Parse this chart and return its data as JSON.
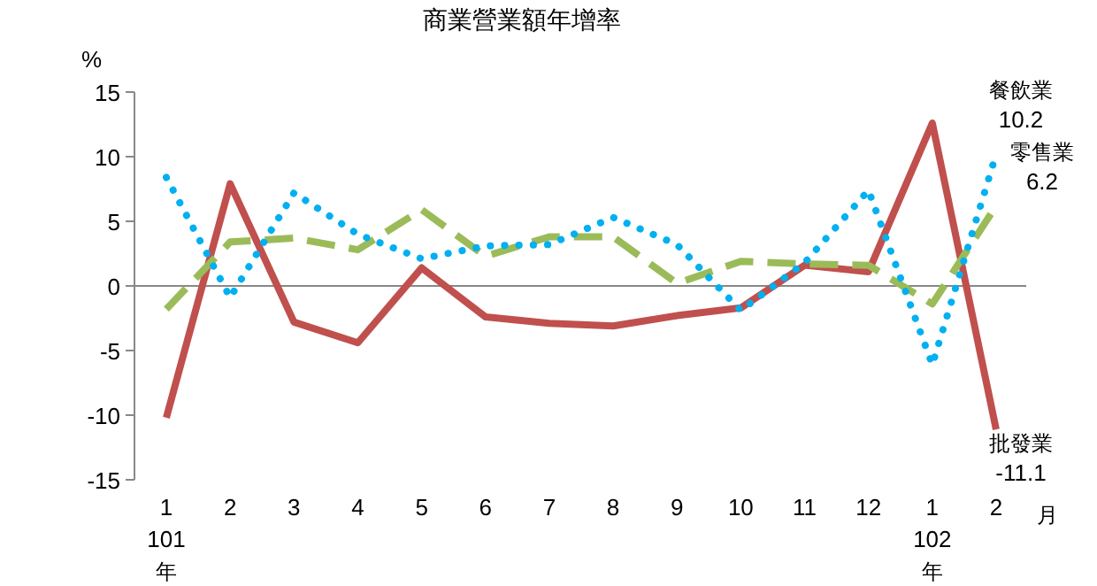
{
  "chart_data": {
    "type": "line",
    "title": "商業營業額年增率",
    "ylabel": "%",
    "categories": [
      "1\n101\n年",
      "2",
      "3",
      "4",
      "5",
      "6",
      "7",
      "8",
      "9",
      "10",
      "11",
      "12",
      "1\n102\n年",
      "2"
    ],
    "annotations": [
      "月"
    ],
    "ylim": [
      -15,
      15
    ],
    "yticks": [
      -15,
      -10,
      -5,
      0,
      5,
      10,
      15
    ],
    "legend": false,
    "series": [
      {
        "name": "批發業",
        "color": "#c0504d",
        "line_style": "solid",
        "values": [
          -10.2,
          7.9,
          -2.8,
          -4.4,
          1.4,
          -2.4,
          -2.9,
          -3.1,
          -2.3,
          -1.7,
          1.6,
          1.1,
          12.6,
          -11.1
        ],
        "value_labels": [
          null,
          null,
          null,
          null,
          null,
          null,
          null,
          null,
          null,
          null,
          null,
          null,
          null,
          "-11.1"
        ]
      },
      {
        "name": "零售業",
        "color": "#9bbb59",
        "line_style": "dashed",
        "values": [
          -1.8,
          3.4,
          3.7,
          2.8,
          5.9,
          2.3,
          3.8,
          3.8,
          0.2,
          1.9,
          1.7,
          1.6,
          -1.4,
          6.2
        ],
        "value_labels": [
          null,
          null,
          null,
          null,
          null,
          null,
          null,
          null,
          null,
          null,
          null,
          null,
          null,
          "6.2"
        ]
      },
      {
        "name": "餐飲業",
        "color": "#00b0f0",
        "line_style": "dotted",
        "values": [
          8.4,
          -0.9,
          7.2,
          4.0,
          2.1,
          3.1,
          3.2,
          5.3,
          3.2,
          -1.9,
          1.8,
          7.4,
          -6.1,
          10.2
        ],
        "value_labels": [
          null,
          null,
          null,
          null,
          null,
          null,
          null,
          null,
          null,
          null,
          null,
          null,
          null,
          "10.2"
        ]
      }
    ]
  }
}
